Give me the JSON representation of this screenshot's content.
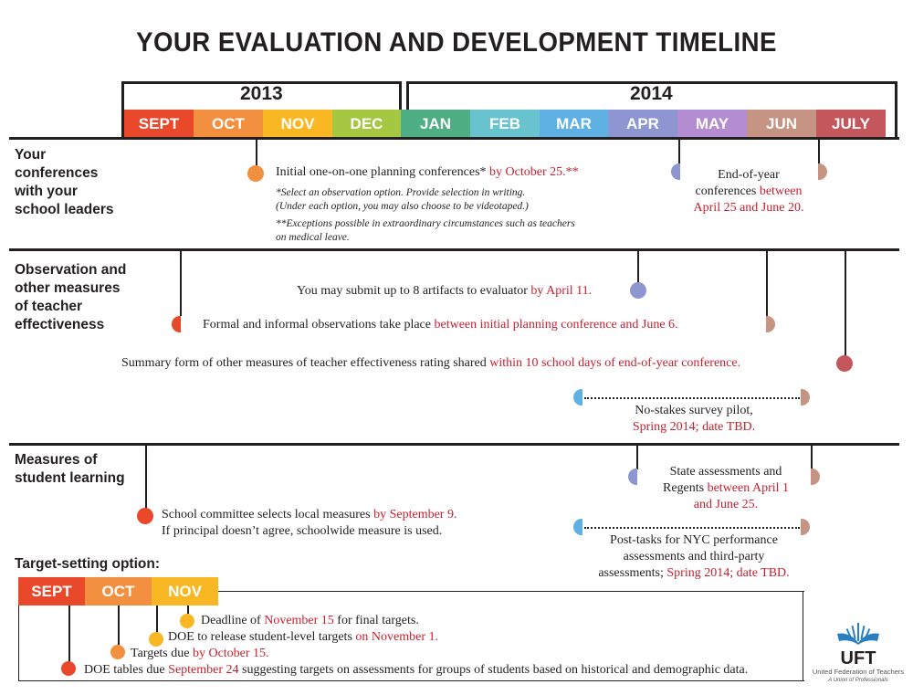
{
  "title": "YOUR EVALUATION AND DEVELOPMENT TIMELINE",
  "years": [
    "2013",
    "2014"
  ],
  "months": [
    {
      "label": "SEPT",
      "color": "#e9482b"
    },
    {
      "label": "OCT",
      "color": "#f3903f"
    },
    {
      "label": "NOV",
      "color": "#f9b823"
    },
    {
      "label": "DEC",
      "color": "#a6c741"
    },
    {
      "label": "JAN",
      "color": "#4fae83"
    },
    {
      "label": "FEB",
      "color": "#69c3cf"
    },
    {
      "label": "MAR",
      "color": "#5fb1e4"
    },
    {
      "label": "APR",
      "color": "#8d96d1"
    },
    {
      "label": "MAY",
      "color": "#b38cd1"
    },
    {
      "label": "JUN",
      "color": "#c69482"
    },
    {
      "label": "JULY",
      "color": "#c4575c"
    }
  ],
  "sections": {
    "conferences": {
      "heading": [
        "Your",
        "conferences",
        "with your",
        "school leaders"
      ],
      "initial": {
        "text": "Initial one-on-one planning conferences* ",
        "red": "by October 25.**"
      },
      "note1": [
        "*Select an observation option. Provide selection in writing.",
        "(Under each option, you may also choose to be videotaped.)"
      ],
      "note2": [
        "**Exceptions possible in extraordinary circumstances such as teachers",
        "on medical leave."
      ],
      "end_year": {
        "line1": "End-of-year",
        "line2": "conferences ",
        "red2": "between",
        "red3": "April 25 and June 20."
      }
    },
    "observation": {
      "heading": [
        "Observation and",
        "other measures",
        "of teacher",
        "effectiveness"
      ],
      "artifacts": {
        "text": "You may submit up to 8 artifacts to evaluator ",
        "red": "by April 11."
      },
      "formal": {
        "text": "Formal and informal observations take place ",
        "red": "between initial planning conference and June 6."
      },
      "summary": {
        "text": "Summary form of other measures of teacher effectiveness rating shared ",
        "red": "within 10 school days of end-of-year conference."
      },
      "survey": {
        "line1": "No-stakes survey pilot,",
        "red": "Spring 2014; date TBD."
      }
    },
    "student": {
      "heading": [
        "Measures of",
        "student learning"
      ],
      "committee": {
        "text": "School committee selects local measures ",
        "red": "by September 9.",
        "line2": "If principal doesn’t agree, schoolwide measure is used."
      },
      "state": {
        "line1": "State assessments and",
        "line2": "Regents ",
        "red2": "between April 1",
        "red3": "and June 25."
      },
      "posttasks": {
        "line1": "Post-tasks for NYC performance",
        "line2": "assessments and third-party",
        "line3": "assessments; ",
        "red3": "Spring 2014; date TBD."
      }
    },
    "target": {
      "heading": "Target-setting option:",
      "months": [
        {
          "label": "SEPT",
          "color": "#e9482b"
        },
        {
          "label": "OCT",
          "color": "#f3903f"
        },
        {
          "label": "NOV",
          "color": "#f9b823"
        }
      ],
      "items": [
        {
          "text": "Deadline of ",
          "red": "November 15",
          "after": " for final targets."
        },
        {
          "text": "DOE to release student-level targets ",
          "red": "on November 1.",
          "after": ""
        },
        {
          "text": "Targets due ",
          "red": "by October 15.",
          "after": ""
        },
        {
          "text": "DOE tables due ",
          "red": "September 24",
          "after": " suggesting targets on assessments for groups of students based on historical and demographic data."
        }
      ]
    }
  },
  "logo": {
    "name": "UFT",
    "line1": "United Federation of Teachers",
    "line2": "A Union of Professionals",
    "color": "#2a7fc1"
  }
}
